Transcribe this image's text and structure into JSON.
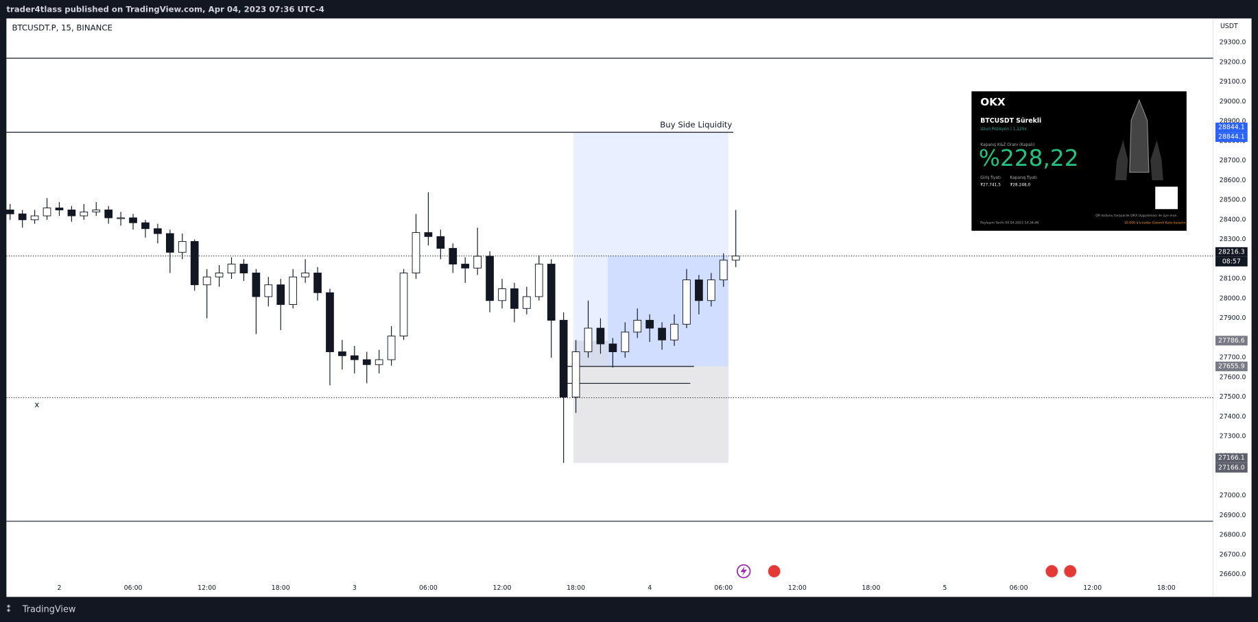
{
  "header": {
    "publisher": "trader4tlass published on TradingView.com, Apr 04, 2023 07:36 UTC-4"
  },
  "chart_data": {
    "type": "candlestick",
    "symbol": "BTCUSDT.P, 15, BINANCE",
    "currency": "USDT",
    "x": [
      -4,
      -3,
      -2,
      -1,
      0,
      1,
      2,
      3,
      4,
      5,
      6,
      7,
      8,
      9,
      10,
      11,
      12,
      13,
      14,
      15,
      16,
      17,
      18,
      19,
      20,
      21,
      22,
      23,
      24,
      25,
      26,
      27,
      28,
      29,
      30,
      31,
      32,
      33,
      34,
      35,
      36,
      37,
      38,
      39,
      40,
      41,
      42,
      43,
      44,
      45,
      46,
      47,
      48,
      49,
      50,
      51,
      52,
      53,
      54,
      55
    ],
    "open": [
      28450,
      28430,
      28400,
      28420,
      28460,
      28450,
      28420,
      28440,
      28450,
      28410,
      28410,
      28385,
      28355,
      28330,
      28235,
      28290,
      28070,
      28110,
      28130,
      28175,
      28130,
      28010,
      28070,
      27970,
      28110,
      28130,
      28030,
      27730,
      27710,
      27690,
      27665,
      27690,
      27810,
      28130,
      28335,
      28315,
      28255,
      28175,
      28155,
      28215,
      27990,
      28050,
      27950,
      28010,
      28175,
      27890,
      27500,
      27730,
      27850,
      27770,
      27730,
      27830,
      27890,
      27850,
      27790,
      27870,
      28095,
      27990,
      28095,
      28195
    ],
    "high": [
      28480,
      28450,
      28450,
      28510,
      28490,
      28470,
      28480,
      28490,
      28470,
      28440,
      28430,
      28400,
      28380,
      28350,
      28330,
      28300,
      28150,
      28170,
      28210,
      28200,
      28150,
      28110,
      28100,
      28150,
      28200,
      28160,
      28050,
      27790,
      27760,
      27730,
      27740,
      27860,
      28150,
      28430,
      28540,
      28350,
      28280,
      28210,
      28360,
      28240,
      28100,
      28080,
      28060,
      28220,
      28200,
      27930,
      27790,
      27990,
      27900,
      27800,
      27880,
      27950,
      27920,
      27880,
      27920,
      28150,
      28120,
      28130,
      28230,
      28450
    ],
    "low": [
      28400,
      28360,
      28380,
      28400,
      28420,
      28390,
      28400,
      28420,
      28380,
      28370,
      28350,
      28310,
      28280,
      28130,
      28200,
      28040,
      27900,
      28060,
      28100,
      28090,
      27820,
      27960,
      27840,
      27950,
      28080,
      27990,
      27560,
      27640,
      27620,
      27570,
      27620,
      27660,
      27790,
      28100,
      28270,
      28200,
      28130,
      28080,
      28120,
      27930,
      27950,
      27880,
      27920,
      27990,
      27700,
      27166,
      27420,
      27700,
      27720,
      27650,
      27700,
      27800,
      27780,
      27740,
      27760,
      27850,
      27920,
      27960,
      28060,
      28160
    ],
    "close": [
      28430,
      28400,
      28420,
      28460,
      28450,
      28420,
      28440,
      28450,
      28410,
      28410,
      28385,
      28355,
      28330,
      28235,
      28290,
      28070,
      28110,
      28130,
      28175,
      28130,
      28010,
      28070,
      27970,
      28110,
      28130,
      28030,
      27730,
      27710,
      27690,
      27665,
      27690,
      27810,
      28130,
      28335,
      28315,
      28255,
      28175,
      28155,
      28215,
      27990,
      28050,
      27950,
      28010,
      28175,
      27890,
      27500,
      27730,
      27850,
      27770,
      27730,
      27830,
      27890,
      27850,
      27790,
      27870,
      28095,
      27990,
      28095,
      28195,
      28216
    ],
    "xlim": [
      -4.3,
      93.8
    ],
    "ylim": [
      26486,
      29422
    ],
    "xticks": [
      {
        "value": 0,
        "label": "2"
      },
      {
        "value": 6,
        "label": "06:00"
      },
      {
        "value": 12,
        "label": "12:00"
      },
      {
        "value": 18,
        "label": "18:00"
      },
      {
        "value": 24,
        "label": "3"
      },
      {
        "value": 30,
        "label": "06:00"
      },
      {
        "value": 36,
        "label": "12:00"
      },
      {
        "value": 42,
        "label": "18:00"
      },
      {
        "value": 48,
        "label": "4"
      },
      {
        "value": 54,
        "label": "06:00"
      },
      {
        "value": 60,
        "label": "12:00"
      },
      {
        "value": 66,
        "label": "18:00"
      },
      {
        "value": 72,
        "label": "5"
      },
      {
        "value": 78,
        "label": "06:00"
      },
      {
        "value": 84,
        "label": "12:00"
      },
      {
        "value": 90,
        "label": "18:00"
      }
    ],
    "yticks": [
      {
        "value": 29300,
        "label": "29300.0"
      },
      {
        "value": 29200,
        "label": "29200.0"
      },
      {
        "value": 29100,
        "label": "29100.0"
      },
      {
        "value": 29000,
        "label": "29000.0"
      },
      {
        "value": 28900,
        "label": "28900.0"
      },
      {
        "value": 28800,
        "label": "28800.0"
      },
      {
        "value": 28700,
        "label": "28700.0"
      },
      {
        "value": 28600,
        "label": "28600.0"
      },
      {
        "value": 28500,
        "label": "28500.0"
      },
      {
        "value": 28400,
        "label": "28400.0"
      },
      {
        "value": 28300,
        "label": "28300.0"
      },
      {
        "value": 28100,
        "label": "28100.0"
      },
      {
        "value": 28000,
        "label": "28000.0"
      },
      {
        "value": 27900,
        "label": "27900.0"
      },
      {
        "value": 27700,
        "label": "27700.0"
      },
      {
        "value": 27600,
        "label": "27600.0"
      },
      {
        "value": 27500,
        "label": "27500.0"
      },
      {
        "value": 27400,
        "label": "27400.0"
      },
      {
        "value": 27300,
        "label": "27300.0"
      },
      {
        "value": 27200,
        "label": "27200.0"
      },
      {
        "value": 27000,
        "label": "27000.0"
      },
      {
        "value": 26900,
        "label": "26900.0"
      },
      {
        "value": 26800,
        "label": "26800.0"
      },
      {
        "value": 26700,
        "label": "26700.0"
      },
      {
        "value": 26600,
        "label": "26600.0"
      }
    ],
    "price_tags": [
      {
        "value": 28844.1,
        "label": "28844.1",
        "color": "#2962ff"
      },
      {
        "value": 28844.1,
        "label": "28844.1",
        "color": "#2962ff"
      },
      {
        "value": 28216.3,
        "label": "28216.3",
        "color": "#131722"
      },
      {
        "value": 27786.6,
        "label": "27786.6",
        "color": "#787b86"
      },
      {
        "value": 27655.9,
        "label": "27655.9",
        "color": "#787b86"
      },
      {
        "value": 27166.1,
        "label": "27166.1",
        "color": "#5d606b"
      },
      {
        "value": 27166.0,
        "label": "27166.0",
        "color": "#5d606b"
      }
    ],
    "countdown": "08:57",
    "levels": [
      {
        "value": 29220,
        "style": "solid"
      },
      {
        "value": 26870,
        "style": "solid"
      },
      {
        "value": 27497,
        "style": "dotted"
      },
      {
        "value": 27570,
        "style": "short"
      }
    ],
    "annotation": "Buy Side Liquidity",
    "marker": "x"
  },
  "ad": {
    "logo": "OKX",
    "instrument": "BTCUSDT Sürekli",
    "position": "Uzun Pozisyon | 1.125x",
    "ratio_label": "Kapanış K&Z Oranı (Kapalı)",
    "ratio": "%228,22",
    "entry_label": "Giriş fiyatı",
    "entry": "₮27.741,5",
    "exit_label": "Kapanış fiyatı",
    "exit": "₮28.248,0",
    "date": "Paylaşım Tarihi 04.04.2023 14:34:46",
    "qr_text": "QR kodunu tarayarak OKX Uygulaması ile üye olun.",
    "promo": "10.000 $'a kadar Gizemli Kutu kazanın"
  },
  "footer": {
    "brand": "TradingView"
  }
}
